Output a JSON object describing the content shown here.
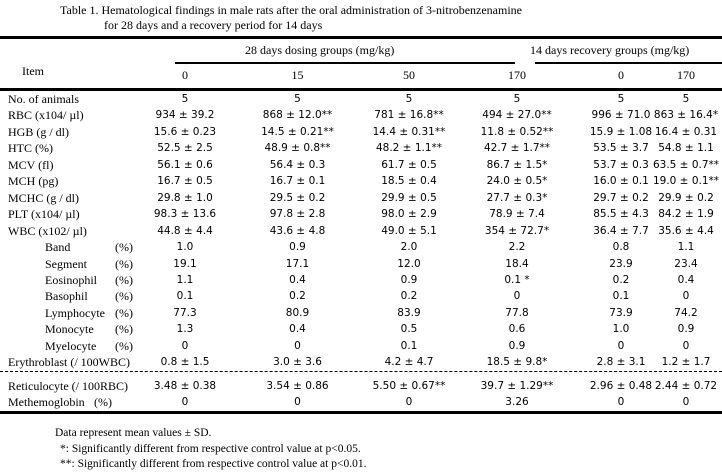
{
  "title": {
    "line1": "Table 1. Hematological findings in male rats after the oral administration of 3-nitrobenzenamine",
    "line2": "for 28 days and a recovery  period for 14 days"
  },
  "header": {
    "item": "Item",
    "group_dosing": "28 days dosing groups (mg/kg)",
    "group_recovery": "14 days recovery groups (mg/kg)",
    "doses": [
      "0",
      "15",
      "50",
      "170",
      "0",
      "170"
    ]
  },
  "rows": [
    {
      "label": "No. of animals",
      "values": [
        "5",
        "5",
        "5",
        "5",
        "5",
        "5"
      ]
    },
    {
      "label": "RBC (x104/ µl)",
      "values": [
        "934 ± 39.2",
        "868 ± 12.0**",
        "781 ± 16.8**",
        "494 ± 27.0**",
        "996 ± 71.0",
        "863 ± 16.4*"
      ]
    },
    {
      "label": "HGB (g / dl)",
      "values": [
        "15.6 ± 0.23",
        "14.5 ± 0.21**",
        "14.4 ± 0.31**",
        "11.8 ± 0.52**",
        "15.9 ± 1.08",
        "16.4 ± 0.31"
      ]
    },
    {
      "label": "HTC (%)",
      "values": [
        "52.5 ± 2.5",
        "48.9 ± 0.8**",
        "48.2 ± 1.1**",
        "42.7 ± 1.7**",
        "53.5 ± 3.7",
        "54.8 ± 1.1"
      ]
    },
    {
      "label": "MCV (fl)",
      "values": [
        "56.1 ± 0.6",
        "56.4 ± 0.3",
        "61.7 ± 0.5",
        "86.7 ± 1.5*",
        "53.7 ± 0.3",
        "63.5 ± 0.7**"
      ]
    },
    {
      "label": "MCH (pg)",
      "values": [
        "16.7 ± 0.5",
        "16.7 ± 0.1",
        "18.5 ± 0.4",
        "24.0 ± 0.5*",
        "16.0 ± 0.1",
        "19.0 ± 0.1**"
      ]
    },
    {
      "label": "MCHC (g / dl)",
      "values": [
        "29.8 ± 1.0",
        "29.5 ± 0.2",
        "29.9 ± 0.5",
        "27.7 ± 0.3*",
        "29.7 ± 0.2",
        "29.9 ± 0.2"
      ]
    },
    {
      "label": "PLT (x104/ µl)",
      "values": [
        "98.3 ± 13.6",
        "97.8 ± 2.8",
        "98.0 ± 2.9",
        "78.9 ± 7.4",
        "85.5 ± 4.3",
        "84.2 ± 1.9"
      ]
    },
    {
      "label": "WBC (x102/ µl)",
      "values": [
        "44.8 ± 4.4",
        "43.6 ± 4.8",
        "49.0 ± 5.1",
        "354 ± 72.7*",
        "36.4 ± 7.7",
        "35.6 ± 4.4"
      ]
    },
    {
      "label": "Band",
      "unit": "(%)",
      "sub": true,
      "values": [
        "1.0",
        "0.9",
        "2.0",
        "2.2",
        "0.8",
        "1.1"
      ]
    },
    {
      "label": "Segment",
      "unit": "(%)",
      "sub": true,
      "values": [
        "19.1",
        "17.1",
        "12.0",
        "18.4",
        "23.9",
        "23.4"
      ]
    },
    {
      "label": "Eosinophil",
      "unit": "(%)",
      "sub": true,
      "values": [
        "1.1",
        "0.4",
        "0.9",
        "0.1 *",
        "0.2",
        "0.4"
      ]
    },
    {
      "label": "Basophil",
      "unit": "(%)",
      "sub": true,
      "values": [
        "0.1",
        "0.2",
        "0.2",
        "0",
        "0.1",
        "0"
      ]
    },
    {
      "label": "Lymphocyte",
      "unit": "(%)",
      "sub": true,
      "values": [
        "77.3",
        "80.9",
        "83.9",
        "77.8",
        "73.9",
        "74.2"
      ]
    },
    {
      "label": "Monocyte",
      "unit": "(%)",
      "sub": true,
      "values": [
        "1.3",
        "0.4",
        "0.5",
        "0.6",
        "1.0",
        "0.9"
      ]
    },
    {
      "label": "Myelocyte",
      "unit": "(%)",
      "sub": true,
      "values": [
        "0",
        "0",
        "0.1",
        "0.9",
        "0",
        "0"
      ]
    },
    {
      "label": "Erythroblast (/ 100WBC)",
      "values": [
        "0.8 ± 1.5",
        "3.0 ± 3.6",
        "4.2 ± 4.7",
        "18.5 ± 9.8*",
        "2.8 ± 3.1",
        "1.2 ± 1.7"
      ]
    }
  ],
  "rows2": [
    {
      "label": "Reticulocyte (/ 100RBC)",
      "values": [
        "3.48 ± 0.38",
        "3.54 ± 0.86",
        "5.50 ± 0.67**",
        "39.7 ± 1.29**",
        "2.96 ± 0.48",
        "2.44 ± 0.72"
      ]
    },
    {
      "label": "Methemoglobin",
      "unit": "(%)",
      "values": [
        "0",
        "0",
        "0",
        "3.26",
        "0",
        "0"
      ]
    }
  ],
  "notes": [
    "Data represent mean values ± SD.",
    "*: Significantly different from respective control value at p<0.05.",
    "**: Significantly different from respective control value at p<0.01."
  ]
}
